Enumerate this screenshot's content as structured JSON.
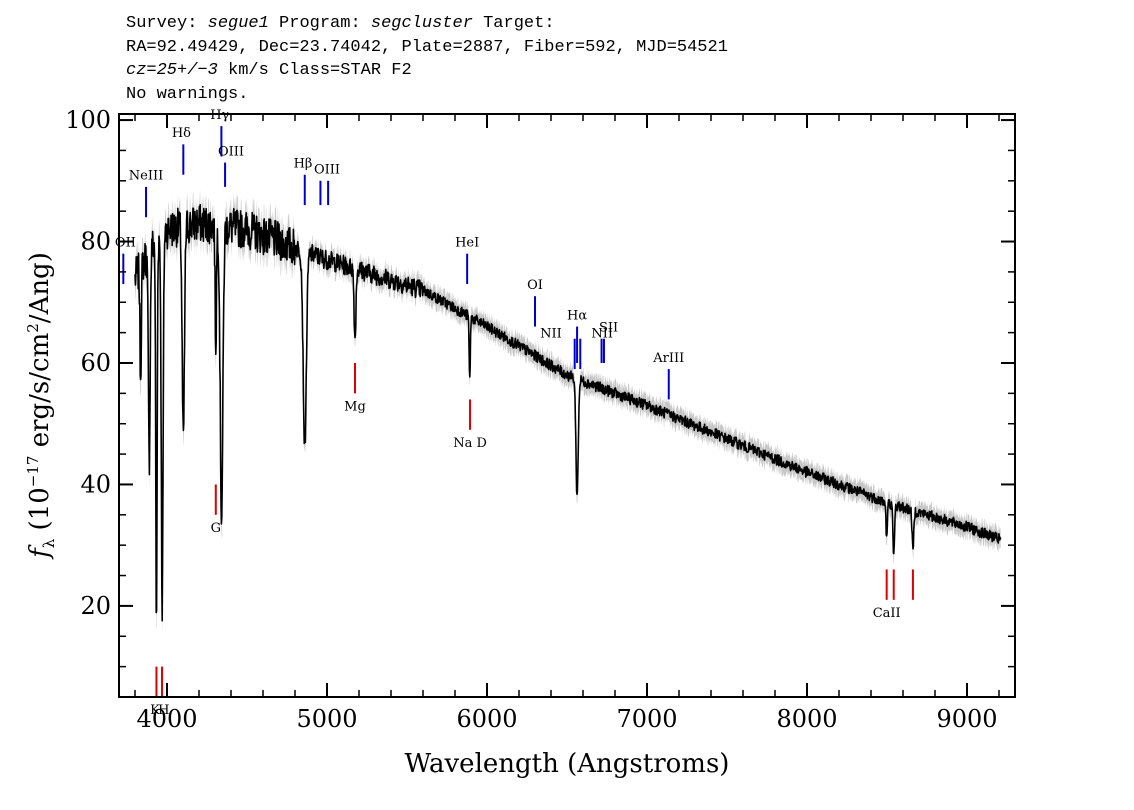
{
  "header": {
    "l1_a": "Survey: ",
    "l1_b": "segue1",
    "l1_c": " Program: ",
    "l1_d": "segcluster",
    "l1_e": " Target:",
    "l2": "RA=92.49429, Dec=23.74042, Plate=2887, Fiber=592, MJD=54521",
    "l3_a": "cz=25+/−3",
    "l3_b": " km/s Class=STAR F2",
    "l4": "No warnings."
  },
  "chart_data": {
    "type": "line",
    "xlabel": "Wavelength (Angstroms)",
    "ylabel_parts": [
      "f",
      "λ",
      " (10",
      "−17",
      " erg/s/cm",
      "2",
      "/Ang)"
    ],
    "xlim": [
      3700,
      9300
    ],
    "ylim": [
      5,
      101
    ],
    "xticks": [
      4000,
      5000,
      6000,
      7000,
      8000,
      9000
    ],
    "yticks": [
      20,
      40,
      60,
      80,
      100
    ],
    "colors": {
      "flux": "#000000",
      "error": "#bdbdbd",
      "emission": "#0000cc",
      "absorption": "#dd0000"
    },
    "continuum": [
      [
        3800,
        74
      ],
      [
        3900,
        79
      ],
      [
        4000,
        82
      ],
      [
        4200,
        83
      ],
      [
        4500,
        82
      ],
      [
        4800,
        79
      ],
      [
        5000,
        77
      ],
      [
        5300,
        74.5
      ],
      [
        5600,
        72
      ],
      [
        6000,
        66
      ],
      [
        6500,
        58
      ],
      [
        7000,
        53
      ],
      [
        7500,
        47.5
      ],
      [
        8000,
        42
      ],
      [
        8500,
        37
      ],
      [
        9000,
        33
      ],
      [
        9200,
        31
      ]
    ],
    "absorption_features": [
      {
        "x": 3835,
        "y": 58,
        "w": 6
      },
      {
        "x": 3889,
        "y": 44,
        "w": 8
      },
      {
        "x": 3934,
        "y": 16,
        "w": 6
      },
      {
        "x": 3970,
        "y": 20,
        "w": 8
      },
      {
        "x": 4102,
        "y": 47,
        "w": 10
      },
      {
        "x": 4305,
        "y": 63,
        "w": 6
      },
      {
        "x": 4341,
        "y": 35,
        "w": 12
      },
      {
        "x": 4861,
        "y": 46,
        "w": 14
      },
      {
        "x": 5175,
        "y": 64,
        "w": 8
      },
      {
        "x": 5892,
        "y": 57,
        "w": 5
      },
      {
        "x": 6563,
        "y": 38,
        "w": 10
      },
      {
        "x": 8498,
        "y": 31,
        "w": 6
      },
      {
        "x": 8542,
        "y": 28,
        "w": 7
      },
      {
        "x": 8662,
        "y": 29,
        "w": 7
      }
    ],
    "emission_lines": [
      {
        "label": "OII",
        "x": 3727,
        "y1": 73,
        "y2": 78,
        "lx": 3740,
        "ly": 80
      },
      {
        "label": "NeIII",
        "x": 3869,
        "y1": 84,
        "y2": 89,
        "lx": 3869,
        "ly": 91
      },
      {
        "label": "Hδ",
        "x": 4102,
        "y1": 91,
        "y2": 96,
        "lx": 4090,
        "ly": 98
      },
      {
        "label": "Hγ",
        "x": 4340,
        "y1": 94,
        "y2": 99,
        "lx": 4330,
        "ly": 101
      },
      {
        "label": "OIII",
        "x": 4363,
        "y1": 89,
        "y2": 93,
        "lx": 4400,
        "ly": 95
      },
      {
        "label": "Hβ",
        "x": 4861,
        "y1": 86,
        "y2": 91,
        "lx": 4850,
        "ly": 93
      },
      {
        "label": "OIII",
        "x": 4959,
        "y1": 86,
        "y2": 90,
        "lx": 5000,
        "ly": 92
      },
      {
        "label": "OIII",
        "x": 5007,
        "y1": 86,
        "y2": 90,
        "lx": null,
        "ly": null
      },
      {
        "label": "HeI",
        "x": 5876,
        "y1": 73,
        "y2": 78,
        "lx": 5876,
        "ly": 80
      },
      {
        "label": "OI",
        "x": 6300,
        "y1": 66,
        "y2": 71,
        "lx": 6300,
        "ly": 73
      },
      {
        "label": "NII",
        "x": 6548,
        "y1": 59,
        "y2": 64,
        "lx": 6400,
        "ly": 65
      },
      {
        "label": "Hα",
        "x": 6563,
        "y1": 60,
        "y2": 66,
        "lx": 6563,
        "ly": 68
      },
      {
        "label": "NII",
        "x": 6583,
        "y1": 59,
        "y2": 64,
        "lx": 6720,
        "ly": 65
      },
      {
        "label": "SII",
        "x": 6716,
        "y1": 60,
        "y2": 64,
        "lx": 6760,
        "ly": 66
      },
      {
        "label": "SII",
        "x": 6731,
        "y1": 60,
        "y2": 64,
        "lx": null,
        "ly": null
      },
      {
        "label": "ArIII",
        "x": 7136,
        "y1": 54,
        "y2": 59,
        "lx": 7136,
        "ly": 61
      }
    ],
    "absorption_lines": [
      {
        "label": "K",
        "x": 3934,
        "y1": 5,
        "y2": 10,
        "lx": 3925,
        "ly": 3
      },
      {
        "label": "H",
        "x": 3969,
        "y1": 5,
        "y2": 10,
        "lx": 3980,
        "ly": 3
      },
      {
        "label": "G",
        "x": 4305,
        "y1": 35,
        "y2": 40,
        "lx": 4305,
        "ly": 33
      },
      {
        "label": "Mg",
        "x": 5175,
        "y1": 55,
        "y2": 60,
        "lx": 5175,
        "ly": 53
      },
      {
        "label": "Na D",
        "x": 5894,
        "y1": 49,
        "y2": 54,
        "lx": 5894,
        "ly": 47
      },
      {
        "label": "CaII",
        "x": 8498,
        "y1": 21,
        "y2": 26,
        "lx": 8498,
        "ly": 19
      },
      {
        "label": "CaII",
        "x": 8542,
        "y1": 21,
        "y2": 26,
        "lx": null,
        "ly": null
      },
      {
        "label": "CaII",
        "x": 8662,
        "y1": 21,
        "y2": 26,
        "lx": null,
        "ly": null
      }
    ],
    "spectrum_range": [
      3800,
      9210
    ],
    "grid": false
  }
}
